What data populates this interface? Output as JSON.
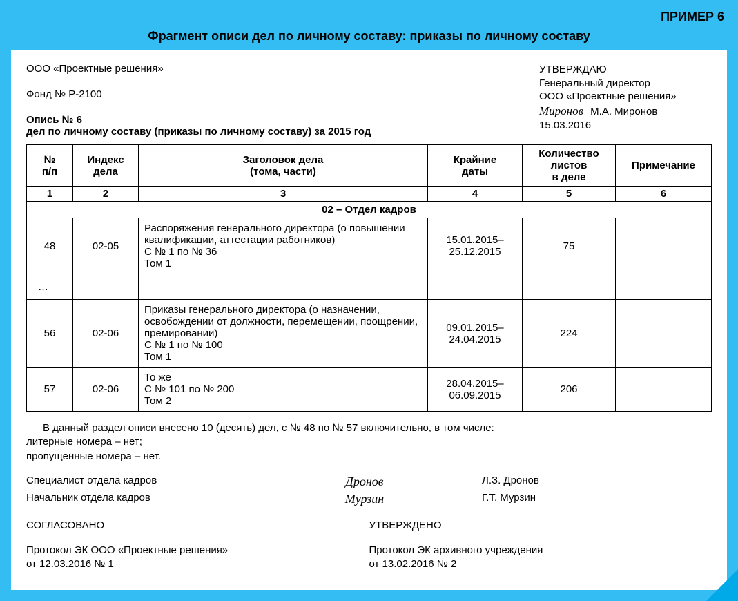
{
  "example_label": "ПРИМЕР 6",
  "page_title": "Фрагмент описи дел по личному составу: приказы по личному составу",
  "header": {
    "org": "ООО «Проектные решения»",
    "fund": "Фонд № Р-2100",
    "opis_no": "Опись № 6",
    "opis_desc": "дел по личному составу (приказы по личному составу) за 2015 год"
  },
  "approval_top": {
    "label": "УТВЕРЖДАЮ",
    "position": "Генеральный директор",
    "org": "ООО «Проектные решения»",
    "signature": "Миронов",
    "name": "М.А. Миронов",
    "date": "15.03.2016"
  },
  "table": {
    "columns": [
      "№\nп/п",
      "Индекс\nдела",
      "Заголовок дела\n(тома, части)",
      "Крайние\nдаты",
      "Количество\nлистов\nв деле",
      "Примечание"
    ],
    "col_numbers": [
      "1",
      "2",
      "3",
      "4",
      "5",
      "6"
    ],
    "section_title": "02 – Отдел кадров",
    "rows": [
      {
        "num": "48",
        "index": "02-05",
        "title": "Распоряжения генерального директора (о повышении квалификации, аттестации работников)\nС № 1 по № 36\nТом 1",
        "dates": "15.01.2015–\n25.12.2015",
        "sheets": "75",
        "note": ""
      },
      {
        "ellipsis": "…"
      },
      {
        "num": "56",
        "index": "02-06",
        "title": "Приказы генерального директора (о назначении, освобождении от должности, перемещении, поощрении, премировании)\nС № 1 по № 100\nТом 1",
        "dates": "09.01.2015–\n24.04.2015",
        "sheets": "224",
        "note": ""
      },
      {
        "num": "57",
        "index": "02-06",
        "title": "То же\nС № 101 по № 200\nТом 2",
        "dates": "28.04.2015–\n06.09.2015",
        "sheets": "206",
        "note": ""
      }
    ]
  },
  "summary": {
    "line1": "В данный раздел описи внесено 10 (десять) дел, с № 48 по № 57 включительно, в том числе:",
    "line2": "литерные номера – нет;",
    "line3": "пропущенные номера – нет."
  },
  "signers": [
    {
      "role": "Специалист отдела кадров",
      "signature": "Дронов",
      "name": "Л.З. Дронов"
    },
    {
      "role": "Начальник отдела кадров",
      "signature": "Мурзин",
      "name": "Г.Т. Мурзин"
    }
  ],
  "approved_left": {
    "label": "СОГЛАСОВАНО",
    "line1": "Протокол ЭК ООО «Проектные решения»",
    "line2": "от 12.03.2016 № 1"
  },
  "approved_right": {
    "label": "УТВЕРЖДЕНО",
    "line1": "Протокол ЭК архивного учреждения",
    "line2": "от 13.02.2016 № 2"
  },
  "colors": {
    "background": "#33bdf2",
    "document_bg": "#ffffff",
    "text": "#000000",
    "corner": "#00a9e8"
  }
}
